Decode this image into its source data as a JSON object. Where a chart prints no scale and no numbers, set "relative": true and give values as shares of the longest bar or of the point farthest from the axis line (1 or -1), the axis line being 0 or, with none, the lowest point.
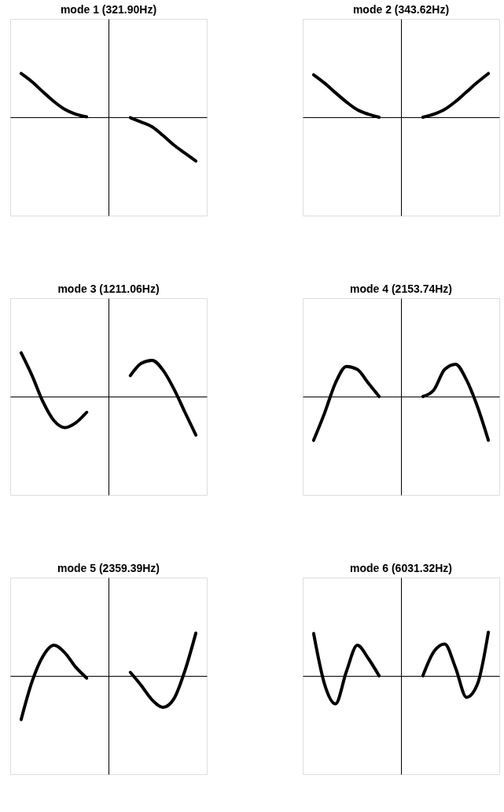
{
  "chart_data": [
    {
      "type": "line",
      "title": "mode  1  (321.90Hz)",
      "relative": true,
      "categories": [
        null,
        null,
        null,
        null,
        null,
        null,
        null,
        null,
        null,
        null,
        null,
        null,
        null,
        null,
        null,
        null,
        null
      ],
      "series": [
        {
          "color": "#000000",
          "values": [
            1.0,
            0.81,
            0.58,
            0.36,
            0.18,
            0.07,
            0.01,
            null,
            null,
            null,
            null,
            null,
            null,
            null,
            null,
            null,
            null
          ]
        },
        {
          "color": "#000000",
          "values": [
            null,
            null,
            null,
            null,
            null,
            null,
            null,
            null,
            null,
            null,
            -0.01,
            -0.11,
            -0.22,
            -0.42,
            -0.64,
            -0.82,
            -1.0
          ]
        }
      ]
    },
    {
      "type": "line",
      "title": "mode  2  (343.62Hz)",
      "relative": true,
      "categories": [
        null,
        null,
        null,
        null,
        null,
        null,
        null,
        null,
        null,
        null,
        null,
        null,
        null,
        null,
        null,
        null,
        null
      ],
      "series": [
        {
          "color": "#000000",
          "values": [
            0.97,
            0.78,
            0.56,
            0.35,
            0.17,
            0.07,
            0.0,
            null,
            null,
            null,
            null,
            null,
            null,
            null,
            null,
            null,
            null
          ]
        },
        {
          "color": "#000000",
          "values": [
            null,
            null,
            null,
            null,
            null,
            null,
            null,
            null,
            null,
            null,
            0.0,
            0.07,
            0.18,
            0.36,
            0.58,
            0.8,
            1.0
          ]
        }
      ]
    },
    {
      "type": "line",
      "title": "mode  3  (1211.06Hz)",
      "relative": true,
      "categories": [
        null,
        null,
        null,
        null,
        null,
        null,
        null,
        null,
        null,
        null,
        null,
        null,
        null,
        null,
        null,
        null,
        null
      ],
      "series": [
        {
          "color": "#000000",
          "values": [
            1.0,
            0.48,
            -0.12,
            -0.55,
            -0.71,
            -0.6,
            -0.36,
            null,
            null,
            null,
            null,
            null,
            null,
            null,
            null,
            null,
            null
          ]
        },
        {
          "color": "#000000",
          "values": [
            null,
            null,
            null,
            null,
            null,
            null,
            null,
            null,
            null,
            null,
            0.48,
            0.76,
            0.83,
            0.6,
            0.17,
            -0.36,
            -0.88
          ]
        }
      ]
    },
    {
      "type": "line",
      "title": "mode  4  (2153.74Hz)",
      "relative": true,
      "categories": [
        null,
        null,
        null,
        null,
        null,
        null,
        null,
        null,
        null,
        null,
        null,
        null,
        null,
        null,
        null,
        null,
        null
      ],
      "series": [
        {
          "color": "#000000",
          "values": [
            -1.0,
            -0.38,
            0.31,
            0.69,
            0.62,
            0.31,
            0.0,
            null,
            null,
            null,
            null,
            null,
            null,
            null,
            null,
            null,
            null
          ]
        },
        {
          "color": "#000000",
          "values": [
            null,
            null,
            null,
            null,
            null,
            null,
            null,
            null,
            null,
            null,
            0.0,
            0.15,
            0.62,
            0.74,
            0.38,
            -0.23,
            -1.0
          ]
        }
      ]
    },
    {
      "type": "line",
      "title": "mode  5  (2359.39Hz)",
      "relative": true,
      "categories": [
        null,
        null,
        null,
        null,
        null,
        null,
        null,
        null,
        null,
        null,
        null,
        null,
        null,
        null,
        null,
        null,
        null
      ],
      "series": [
        {
          "color": "#000000",
          "values": [
            -1.0,
            -0.13,
            0.45,
            0.7,
            0.53,
            0.2,
            -0.05,
            null,
            null,
            null,
            null,
            null,
            null,
            null,
            null,
            null,
            null
          ]
        },
        {
          "color": "#000000",
          "values": [
            null,
            null,
            null,
            null,
            null,
            null,
            null,
            null,
            null,
            null,
            0.08,
            -0.22,
            -0.55,
            -0.72,
            -0.52,
            0.12,
            0.98
          ]
        }
      ]
    },
    {
      "type": "line",
      "title": "mode  6  (6031.32Hz)",
      "relative": true,
      "categories": [
        null,
        null,
        null,
        null,
        null,
        null,
        null,
        null,
        null,
        null,
        null,
        null,
        null,
        null,
        null,
        null,
        null
      ],
      "series": [
        {
          "color": "#000000",
          "values": [
            0.97,
            -0.19,
            -0.64,
            0.1,
            0.7,
            0.4,
            0.0,
            null,
            null,
            null,
            null,
            null,
            null,
            null,
            null,
            null,
            null
          ]
        },
        {
          "color": "#000000",
          "values": [
            null,
            null,
            null,
            null,
            null,
            null,
            null,
            null,
            null,
            null,
            0.0,
            0.55,
            0.73,
            0.18,
            -0.49,
            -0.19,
            1.0
          ]
        }
      ]
    }
  ]
}
